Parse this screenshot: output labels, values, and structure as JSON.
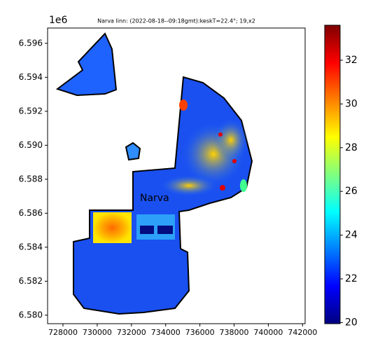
{
  "chart_data": {
    "type": "heatmap-map",
    "title": "Narva linn: (2022-08-18--09:18gmt):keskT=22.4°; 19,x2",
    "offset_label": "1e6",
    "annotation": "Narva",
    "xlim": [
      727100,
      742150
    ],
    "xticks": [
      728000,
      730000,
      732000,
      734000,
      736000,
      738000,
      740000,
      742000
    ],
    "ylim": [
      6.5795,
      6.5969
    ],
    "yticks": [
      {
        "value": 6.58,
        "label": "6.580"
      },
      {
        "value": 6.582,
        "label": "6.582"
      },
      {
        "value": 6.584,
        "label": "6.584"
      },
      {
        "value": 6.586,
        "label": "6.586"
      },
      {
        "value": 6.588,
        "label": "6.588"
      },
      {
        "value": 6.59,
        "label": "6.590"
      },
      {
        "value": 6.592,
        "label": "6.592"
      },
      {
        "value": 6.594,
        "label": "6.594"
      },
      {
        "value": 6.596,
        "label": "6.596"
      }
    ],
    "colormap": "jet",
    "clim": [
      19.95,
      33.6
    ],
    "cticks": [
      20,
      22,
      24,
      26,
      28,
      30,
      32
    ]
  }
}
